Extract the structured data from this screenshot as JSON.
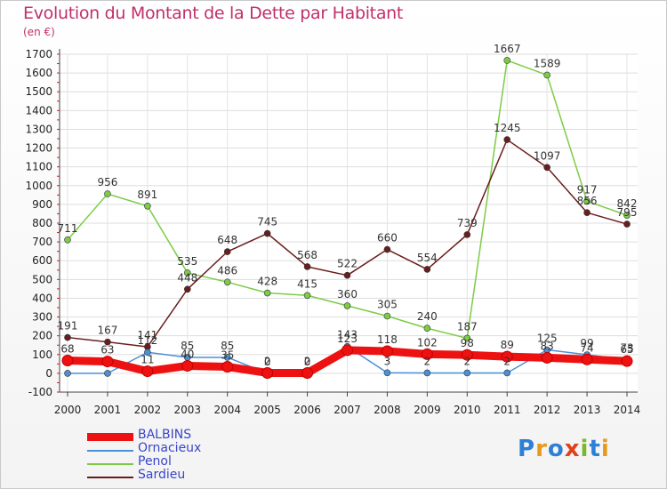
{
  "title": "Evolution du Montant de la Dette par Habitant",
  "unit_label": "(en €)",
  "logo": {
    "text": "Proxiti",
    "colors": [
      "#2e7fd6",
      "#e69a1c",
      "#2e7fd6",
      "#e0411a",
      "#7ab829",
      "#2e7fd6",
      "#e69a1c"
    ]
  },
  "chart_data": {
    "type": "line",
    "x": [
      "2000",
      "2001",
      "2002",
      "2003",
      "2004",
      "2005",
      "2006",
      "2007",
      "2008",
      "2009",
      "2010",
      "2011",
      "2012",
      "2013",
      "2014"
    ],
    "ylim": [
      -100,
      1700
    ],
    "yticks": [
      -100,
      0,
      100,
      200,
      300,
      400,
      500,
      600,
      700,
      800,
      900,
      1000,
      1100,
      1200,
      1300,
      1400,
      1500,
      1600,
      1700
    ],
    "grid": true,
    "legend_position": "bottom-left",
    "series": [
      {
        "name": "BALBINS",
        "color": "#ee1111",
        "values": [
          68,
          63,
          11,
          40,
          35,
          2,
          2,
          123,
          118,
          102,
          98,
          89,
          83,
          74,
          65
        ],
        "labels": [
          "68",
          "63",
          "11",
          "40",
          "35",
          "2",
          "2",
          "123",
          "118",
          "102",
          "98",
          "89",
          "83",
          "74",
          "65"
        ]
      },
      {
        "name": "Ornacieux",
        "color": "#4a90d9",
        "values": [
          0,
          0,
          112,
          85,
          85,
          0,
          0,
          143,
          3,
          2,
          2,
          2,
          125,
          99,
          73
        ],
        "labels": [
          "",
          "",
          "112",
          "85",
          "85",
          "0",
          "0",
          "143",
          "3",
          "2",
          "2",
          "2",
          "125",
          "99",
          "73"
        ]
      },
      {
        "name": "Penol",
        "color": "#7ccc46",
        "values": [
          711,
          956,
          891,
          535,
          486,
          428,
          415,
          360,
          305,
          240,
          187,
          1667,
          1589,
          917,
          842
        ],
        "labels": [
          "711",
          "956",
          "891",
          "535",
          "486",
          "428",
          "415",
          "360",
          "305",
          "240",
          "187",
          "1667",
          "1589",
          "917",
          "842"
        ]
      },
      {
        "name": "Sardieu",
        "color": "#6b1d1d",
        "values": [
          191,
          167,
          141,
          448,
          648,
          745,
          568,
          522,
          660,
          554,
          739,
          1245,
          1097,
          856,
          795
        ],
        "labels": [
          "191",
          "167",
          "141",
          "448",
          "648",
          "745",
          "568",
          "522",
          "660",
          "554",
          "739",
          "1245",
          "1097",
          "856",
          "795"
        ]
      }
    ]
  }
}
